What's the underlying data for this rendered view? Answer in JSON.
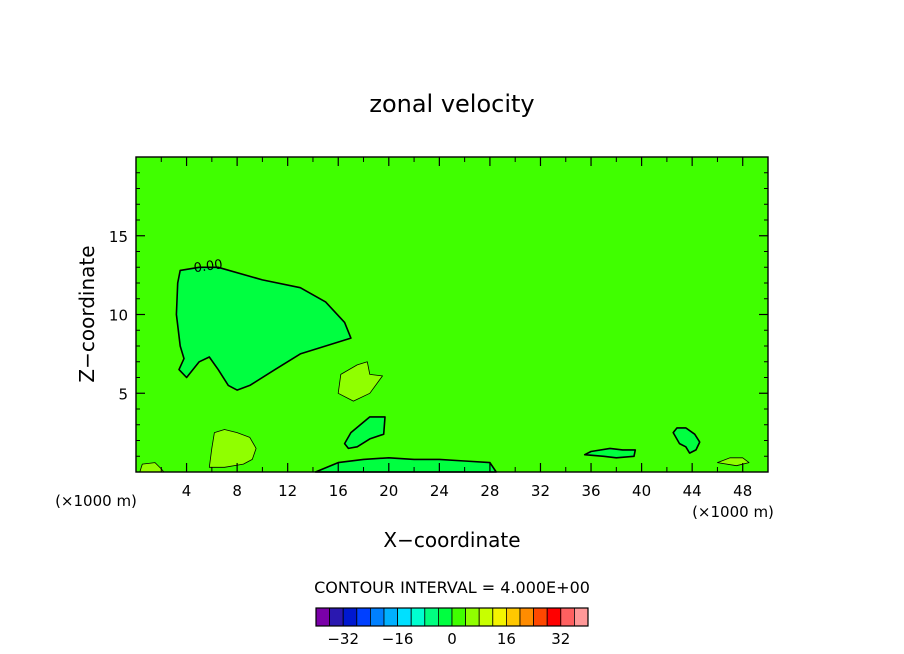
{
  "chart_data": {
    "type": "heatmap",
    "title": "zonal velocity",
    "xlabel": "X−coordinate",
    "ylabel": "Z−coordinate",
    "x_unit_left": "(×1000 m)",
    "x_unit_right": "(×1000 m)",
    "xlim": [
      0,
      50
    ],
    "ylim": [
      0,
      20
    ],
    "x_ticks": [
      4,
      8,
      12,
      16,
      20,
      24,
      28,
      32,
      36,
      40,
      44,
      48
    ],
    "y_ticks": [
      5,
      10,
      15
    ],
    "contour_label": "0.00",
    "contour_interval_text": "CONTOUR INTERVAL = 4.000E+00",
    "background_value": 0,
    "regions": [
      {
        "value": -4,
        "points": [
          [
            3.5,
            12.8
          ],
          [
            5,
            13
          ],
          [
            6.5,
            13
          ],
          [
            10,
            12.2
          ],
          [
            13,
            11.7
          ],
          [
            15,
            10.8
          ],
          [
            16.5,
            9.5
          ],
          [
            17,
            8.5
          ],
          [
            15,
            8
          ],
          [
            13,
            7.5
          ],
          [
            11,
            6.5
          ],
          [
            9,
            5.5
          ],
          [
            8,
            5.2
          ],
          [
            7.3,
            5.5
          ],
          [
            6.5,
            6.5
          ],
          [
            5.8,
            7.3
          ],
          [
            5,
            7
          ],
          [
            4.5,
            6.5
          ],
          [
            4,
            6
          ],
          [
            3.4,
            6.5
          ],
          [
            3.8,
            7.2
          ],
          [
            3.5,
            8
          ],
          [
            3.2,
            10
          ],
          [
            3.3,
            12
          ]
        ]
      },
      {
        "value": 4,
        "points": [
          [
            16,
            5
          ],
          [
            16.2,
            6.2
          ],
          [
            17.5,
            6.8
          ],
          [
            18.3,
            7
          ],
          [
            18.5,
            6.2
          ],
          [
            19.5,
            6.1
          ],
          [
            18.5,
            5
          ],
          [
            17.2,
            4.5
          ]
        ]
      },
      {
        "value": 4,
        "points": [
          [
            5.8,
            0.3
          ],
          [
            6,
            1.5
          ],
          [
            6.2,
            2.5
          ],
          [
            7,
            2.7
          ],
          [
            8,
            2.5
          ],
          [
            9,
            2.2
          ],
          [
            9.5,
            1.5
          ],
          [
            9.2,
            0.8
          ],
          [
            8.5,
            0.5
          ],
          [
            7,
            0.3
          ]
        ]
      },
      {
        "value": -4,
        "points": [
          [
            16.5,
            1.8
          ],
          [
            17,
            2.5
          ],
          [
            18.5,
            3.5
          ],
          [
            19.7,
            3.5
          ],
          [
            19.6,
            2.4
          ],
          [
            18.5,
            2.1
          ],
          [
            17.5,
            1.6
          ],
          [
            16.8,
            1.5
          ]
        ]
      },
      {
        "value": -4,
        "points": [
          [
            42.5,
            2.5
          ],
          [
            42.8,
            2.8
          ],
          [
            43.5,
            2.8
          ],
          [
            44.2,
            2.4
          ],
          [
            44.6,
            1.9
          ],
          [
            44.3,
            1.4
          ],
          [
            43.8,
            1.2
          ],
          [
            43.5,
            1.6
          ],
          [
            43,
            1.8
          ]
        ]
      },
      {
        "value": -4,
        "points": [
          [
            35.5,
            1.1
          ],
          [
            36,
            1.3
          ],
          [
            37.5,
            1.5
          ],
          [
            38.5,
            1.4
          ],
          [
            39.5,
            1.4
          ],
          [
            39.4,
            1
          ],
          [
            38,
            0.9
          ],
          [
            37,
            1
          ]
        ]
      },
      {
        "value": -4,
        "points": [
          [
            14.2,
            0
          ],
          [
            16,
            0.6
          ],
          [
            18,
            0.8
          ],
          [
            20,
            0.9
          ],
          [
            22,
            0.8
          ],
          [
            24,
            0.8
          ],
          [
            26,
            0.7
          ],
          [
            28,
            0.6
          ],
          [
            28.5,
            0
          ]
        ]
      },
      {
        "value": 4,
        "points": [
          [
            0.3,
            0
          ],
          [
            0.5,
            0.5
          ],
          [
            1.5,
            0.6
          ],
          [
            2,
            0.2
          ],
          [
            2.2,
            0
          ]
        ]
      },
      {
        "value": 4,
        "points": [
          [
            46,
            0.6
          ],
          [
            47,
            0.9
          ],
          [
            48,
            0.9
          ],
          [
            48.5,
            0.6
          ],
          [
            47.5,
            0.4
          ]
        ]
      }
    ],
    "colorbar": {
      "values": [
        -36,
        -32,
        -28,
        -24,
        -20,
        -16,
        -12,
        -8,
        -4,
        0,
        4,
        8,
        12,
        16,
        20,
        24,
        28,
        32,
        36
      ],
      "colors": [
        "#7a00a8",
        "#2a18b0",
        "#0018d0",
        "#0040ff",
        "#0080ff",
        "#00b0ff",
        "#00e0ff",
        "#00ffd0",
        "#00ff80",
        "#00ff40",
        "#40ff00",
        "#90ff00",
        "#c8ff00",
        "#f4f400",
        "#ffc800",
        "#ff8c00",
        "#ff4800",
        "#ff0000",
        "#ff6060",
        "#ff9898"
      ],
      "tick_labels": [
        "−32",
        "−16",
        "0",
        "16",
        "32"
      ],
      "tick_values": [
        -32,
        -16,
        0,
        16,
        32
      ]
    }
  }
}
